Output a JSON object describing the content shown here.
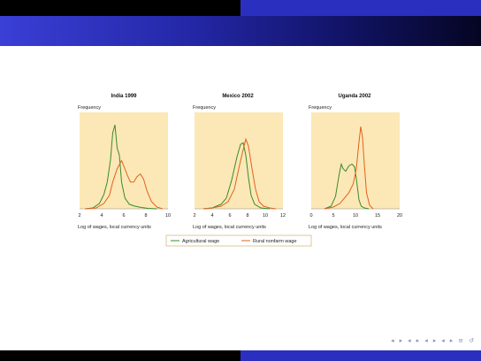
{
  "slide": {
    "colors": {
      "title_bar_start": "#3a3fd6",
      "title_bar_end": "#050522",
      "plot_background": "#fce8b6",
      "agricultural_line": "#3a8a2a",
      "rural_nonfarm_line": "#e0621e"
    }
  },
  "legend": {
    "agricultural": "Agricultural wage",
    "rural_nonfarm": "Rural nonfarm wage"
  },
  "navigation": {
    "icons": [
      "nav-left-icon",
      "nav-right-icon",
      "frame-prev-icon",
      "frame-next-icon",
      "section-prev-icon",
      "section-next-icon",
      "subsection-prev-icon",
      "subsection-next-icon",
      "align-icon",
      "search-icon"
    ],
    "symbols": [
      "◂",
      "▸",
      "◂",
      "▸",
      "◂",
      "▸",
      "◂",
      "▸",
      "≡",
      "↺"
    ]
  },
  "chart_data": [
    {
      "type": "line",
      "title": "India 1999",
      "ylabel": "Frequency",
      "xlabel": "Log of wages, local currency units",
      "xlim": [
        2,
        10
      ],
      "xticks": [
        "2",
        "4",
        "6",
        "8",
        "10"
      ],
      "series": [
        {
          "name": "Agricultural wage",
          "x": [
            2.5,
            3.2,
            3.8,
            4.2,
            4.5,
            4.8,
            5.0,
            5.2,
            5.4,
            5.6,
            5.8,
            6.1,
            6.5,
            7.0,
            7.6,
            8.2,
            9.0
          ],
          "y": [
            0.0,
            0.01,
            0.06,
            0.16,
            0.3,
            0.55,
            0.85,
            0.94,
            0.68,
            0.6,
            0.3,
            0.12,
            0.05,
            0.03,
            0.015,
            0.005,
            0.0
          ]
        },
        {
          "name": "Rural nonfarm wage",
          "x": [
            2.5,
            3.5,
            4.2,
            4.7,
            5.0,
            5.4,
            5.8,
            6.0,
            6.3,
            6.6,
            6.9,
            7.2,
            7.5,
            7.8,
            8.1,
            8.5,
            9.0,
            9.5
          ],
          "y": [
            0.0,
            0.01,
            0.06,
            0.15,
            0.3,
            0.45,
            0.54,
            0.48,
            0.38,
            0.3,
            0.3,
            0.36,
            0.39,
            0.33,
            0.2,
            0.08,
            0.02,
            0.0
          ]
        }
      ]
    },
    {
      "type": "line",
      "title": "Mexico 2002",
      "ylabel": "Frequency",
      "xlabel": "Log of wages, local currency units",
      "xlim": [
        2,
        12
      ],
      "xticks": [
        "2",
        "4",
        "6",
        "8",
        "10",
        "12"
      ],
      "series": [
        {
          "name": "Agricultural wage",
          "x": [
            3.0,
            4.0,
            5.0,
            5.6,
            6.2,
            6.8,
            7.2,
            7.5,
            7.8,
            8.1,
            8.4,
            8.8,
            9.5,
            10.5
          ],
          "y": [
            0.0,
            0.01,
            0.05,
            0.12,
            0.32,
            0.58,
            0.72,
            0.74,
            0.6,
            0.35,
            0.15,
            0.05,
            0.01,
            0.0
          ]
        },
        {
          "name": "Rural nonfarm wage",
          "x": [
            3.0,
            4.0,
            5.0,
            5.8,
            6.5,
            7.0,
            7.4,
            7.8,
            8.1,
            8.5,
            8.9,
            9.3,
            9.8,
            10.5,
            11.2
          ],
          "y": [
            0.0,
            0.01,
            0.03,
            0.08,
            0.22,
            0.45,
            0.62,
            0.78,
            0.7,
            0.45,
            0.22,
            0.08,
            0.03,
            0.01,
            0.0
          ]
        }
      ]
    },
    {
      "type": "line",
      "title": "Uganda 2002",
      "ylabel": "Frequency",
      "xlabel": "Log of wages, local currency units",
      "xlim": [
        0,
        20
      ],
      "xticks": [
        "0",
        "5",
        "10",
        "15",
        "20"
      ],
      "series": [
        {
          "name": "Agricultural wage",
          "x": [
            3.0,
            4.5,
            5.5,
            6.3,
            6.8,
            7.2,
            7.8,
            8.5,
            9.2,
            9.8,
            10.3,
            10.8,
            11.3,
            12.0,
            13.0
          ],
          "y": [
            0.0,
            0.03,
            0.14,
            0.38,
            0.5,
            0.45,
            0.42,
            0.48,
            0.5,
            0.47,
            0.3,
            0.1,
            0.03,
            0.01,
            0.0
          ]
        },
        {
          "name": "Rural nonfarm wage",
          "x": [
            3.0,
            5.0,
            6.5,
            7.5,
            8.5,
            9.5,
            10.2,
            10.8,
            11.2,
            11.6,
            12.0,
            12.5,
            13.2,
            14.0
          ],
          "y": [
            0.0,
            0.02,
            0.06,
            0.12,
            0.18,
            0.28,
            0.45,
            0.75,
            0.92,
            0.8,
            0.5,
            0.18,
            0.04,
            0.0
          ]
        }
      ]
    }
  ]
}
